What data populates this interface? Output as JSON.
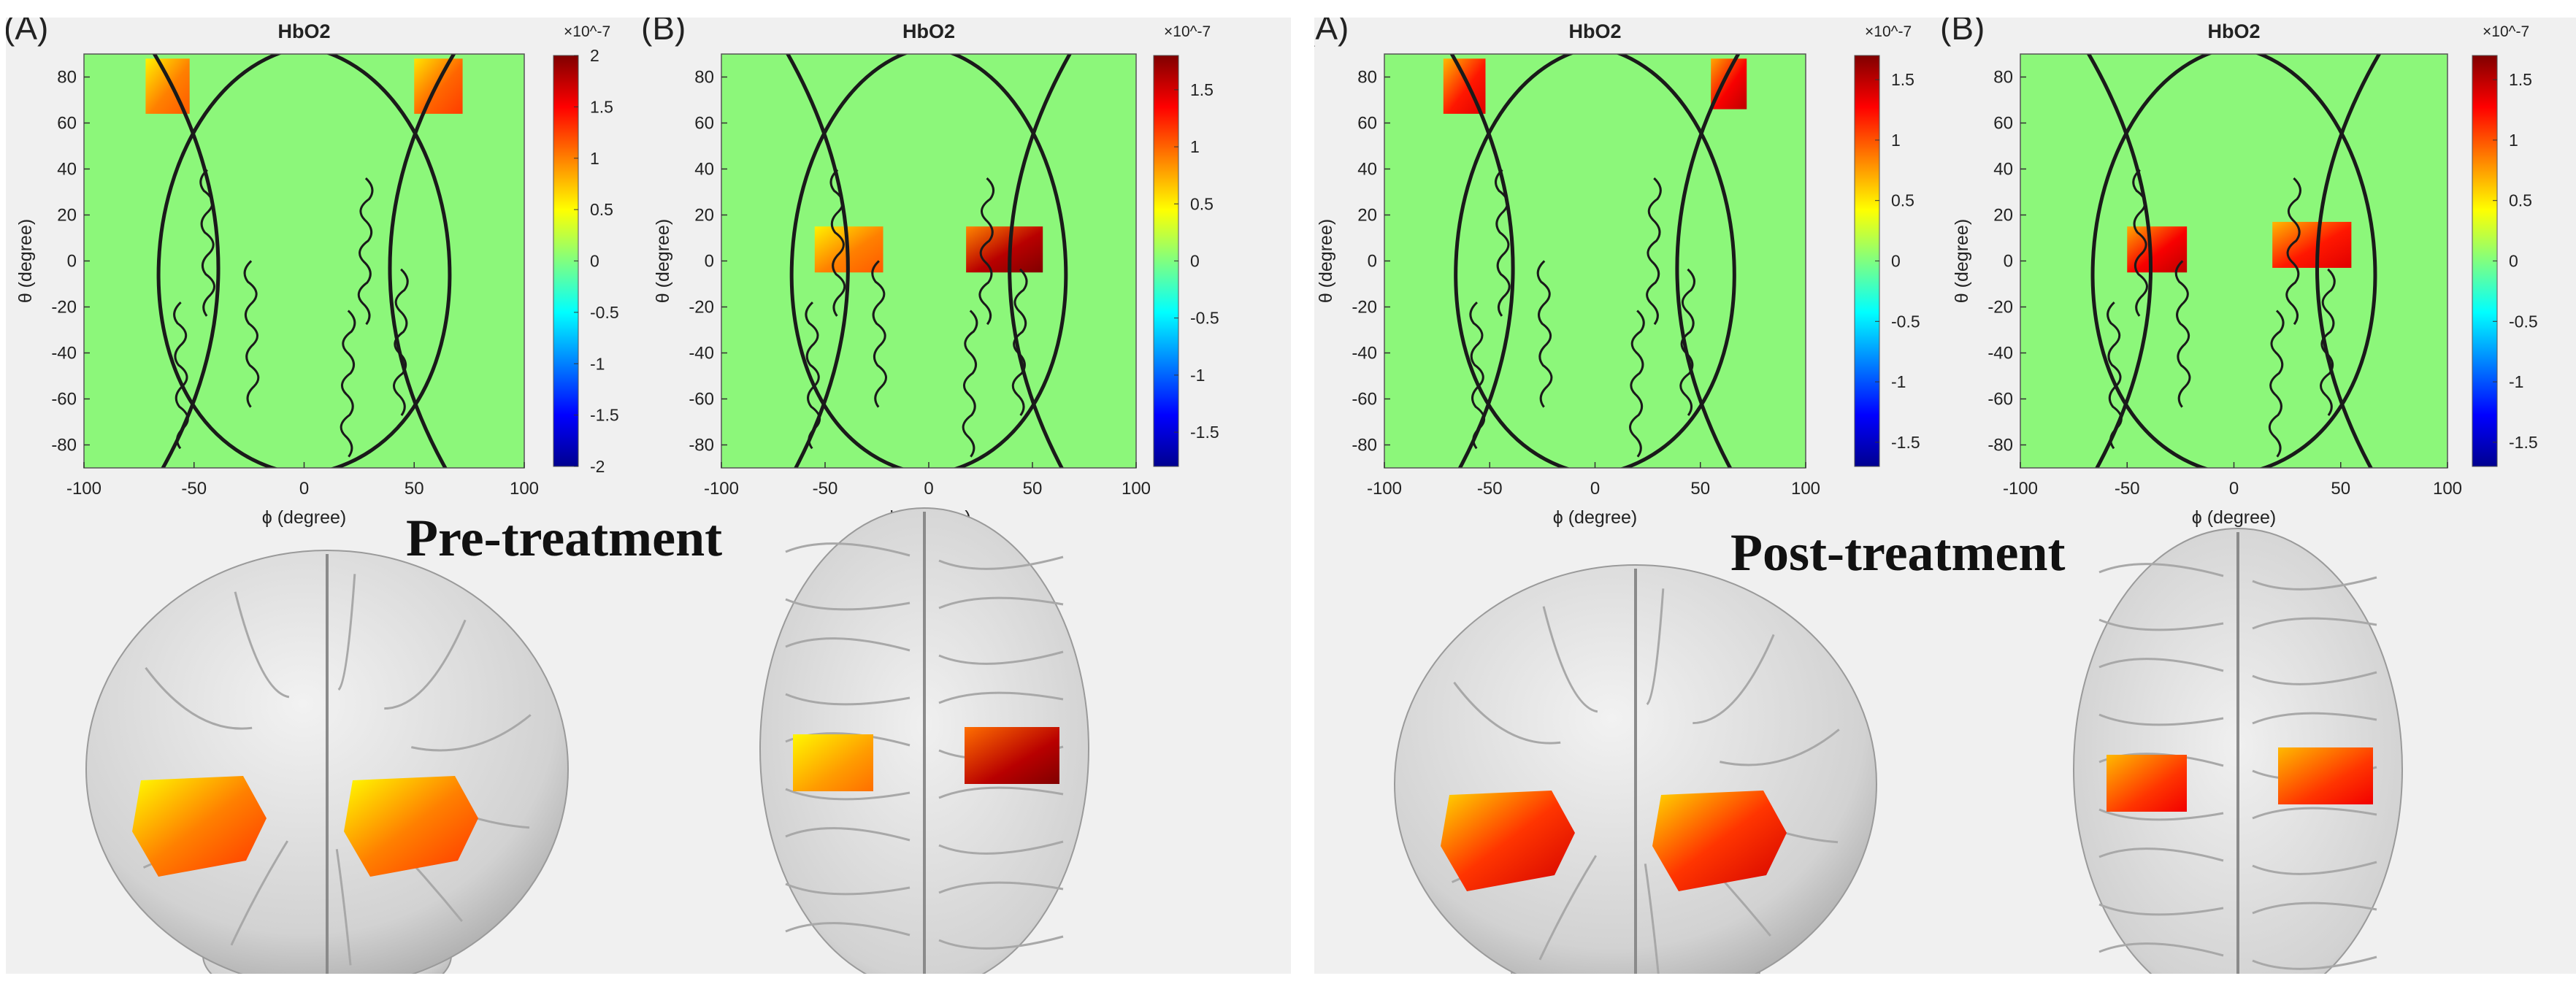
{
  "colors": {
    "map_background": "#8cf77a",
    "panel_background": "#f0f0f0",
    "brain": "#d2d2d2",
    "contour": "#1a1a1a",
    "colormap": [
      "#00008f",
      "#0000ff",
      "#0080ff",
      "#00ffff",
      "#80ff80",
      "#ffff00",
      "#ff8000",
      "#ff0000",
      "#800000"
    ]
  },
  "chart_data": [
    {
      "group_label": "Pre-treatment",
      "plots": [
        {
          "type": "heatmap",
          "panel_label": "(A)",
          "title": "HbO2",
          "xlabel": "ϕ (degree)",
          "ylabel": "θ (degree)",
          "xlim": [
            -100,
            100
          ],
          "ylim": [
            -90,
            90
          ],
          "xticks": [
            -100,
            -50,
            0,
            50,
            100
          ],
          "yticks": [
            80,
            60,
            40,
            20,
            0,
            -20,
            -40,
            -60,
            -80
          ],
          "colorbar": {
            "multiplier": "×10^-7",
            "min": -2,
            "max": 2,
            "ticks": [
              2,
              1.5,
              1,
              0.5,
              0,
              -0.5,
              -1,
              -1.5,
              -2
            ]
          },
          "activations": [
            {
              "phi": [
                -72,
                -52
              ],
              "theta": [
                64,
                88
              ],
              "value": 1.0
            },
            {
              "phi": [
                50,
                72
              ],
              "theta": [
                64,
                88
              ],
              "value": 1.1
            }
          ]
        },
        {
          "type": "heatmap",
          "panel_label": "(B)",
          "title": "HbO2",
          "xlabel": "ϕ (degree)",
          "ylabel": "θ (degree)",
          "xlim": [
            -100,
            100
          ],
          "ylim": [
            -90,
            90
          ],
          "xticks": [
            -100,
            -50,
            0,
            50,
            100
          ],
          "yticks": [
            80,
            60,
            40,
            20,
            0,
            -20,
            -40,
            -60,
            -80
          ],
          "colorbar": {
            "multiplier": "×10^-7",
            "min": -1.8,
            "max": 1.8,
            "ticks": [
              1.5,
              1,
              0.5,
              0,
              -0.5,
              -1,
              -1.5
            ]
          },
          "activations": [
            {
              "phi": [
                -55,
                -22
              ],
              "theta": [
                -5,
                15
              ],
              "value": 0.9
            },
            {
              "phi": [
                18,
                55
              ],
              "theta": [
                -5,
                15
              ],
              "value": 1.6
            }
          ]
        }
      ]
    },
    {
      "group_label": "Post-treatment",
      "plots": [
        {
          "type": "heatmap",
          "panel_label": "(A)",
          "title": "HbO2",
          "xlabel": "ϕ (degree)",
          "ylabel": "θ (degree)",
          "xlim": [
            -100,
            100
          ],
          "ylim": [
            -90,
            90
          ],
          "xticks": [
            -100,
            -50,
            0,
            50,
            100
          ],
          "yticks": [
            80,
            60,
            40,
            20,
            0,
            -20,
            -40,
            -60,
            -80
          ],
          "colorbar": {
            "multiplier": "×10^-7",
            "min": -1.7,
            "max": 1.7,
            "ticks": [
              1.5,
              1,
              0.5,
              0,
              -0.5,
              -1,
              -1.5
            ]
          },
          "activations": [
            {
              "phi": [
                -72,
                -52
              ],
              "theta": [
                64,
                88
              ],
              "value": 1.2
            },
            {
              "phi": [
                55,
                72
              ],
              "theta": [
                66,
                88
              ],
              "value": 1.3
            }
          ]
        },
        {
          "type": "heatmap",
          "panel_label": "(B)",
          "title": "HbO2",
          "xlabel": "ϕ (degree)",
          "ylabel": "θ (degree)",
          "xlim": [
            -100,
            100
          ],
          "ylim": [
            -90,
            90
          ],
          "xticks": [
            -100,
            -50,
            0,
            50,
            100
          ],
          "yticks": [
            80,
            60,
            40,
            20,
            0,
            -20,
            -40,
            -60,
            -80
          ],
          "colorbar": {
            "multiplier": "×10^-7",
            "min": -1.7,
            "max": 1.7,
            "ticks": [
              1.5,
              1,
              0.5,
              0,
              -0.5,
              -1,
              -1.5
            ]
          },
          "activations": [
            {
              "phi": [
                -50,
                -22
              ],
              "theta": [
                -5,
                15
              ],
              "value": 1.3
            },
            {
              "phi": [
                18,
                55
              ],
              "theta": [
                -3,
                17
              ],
              "value": 1.2
            }
          ]
        }
      ]
    }
  ],
  "brain_renders": [
    {
      "group": "Pre-treatment",
      "frontal": {
        "left_patch_value": 1.0,
        "right_patch_value": 1.0
      },
      "top": {
        "left_patch_value": 0.8,
        "right_patch_value": 1.6
      }
    },
    {
      "group": "Post-treatment",
      "frontal": {
        "left_patch_value": 1.1,
        "right_patch_value": 1.1
      },
      "top": {
        "left_patch_value": 1.1,
        "right_patch_value": 1.1
      }
    }
  ]
}
